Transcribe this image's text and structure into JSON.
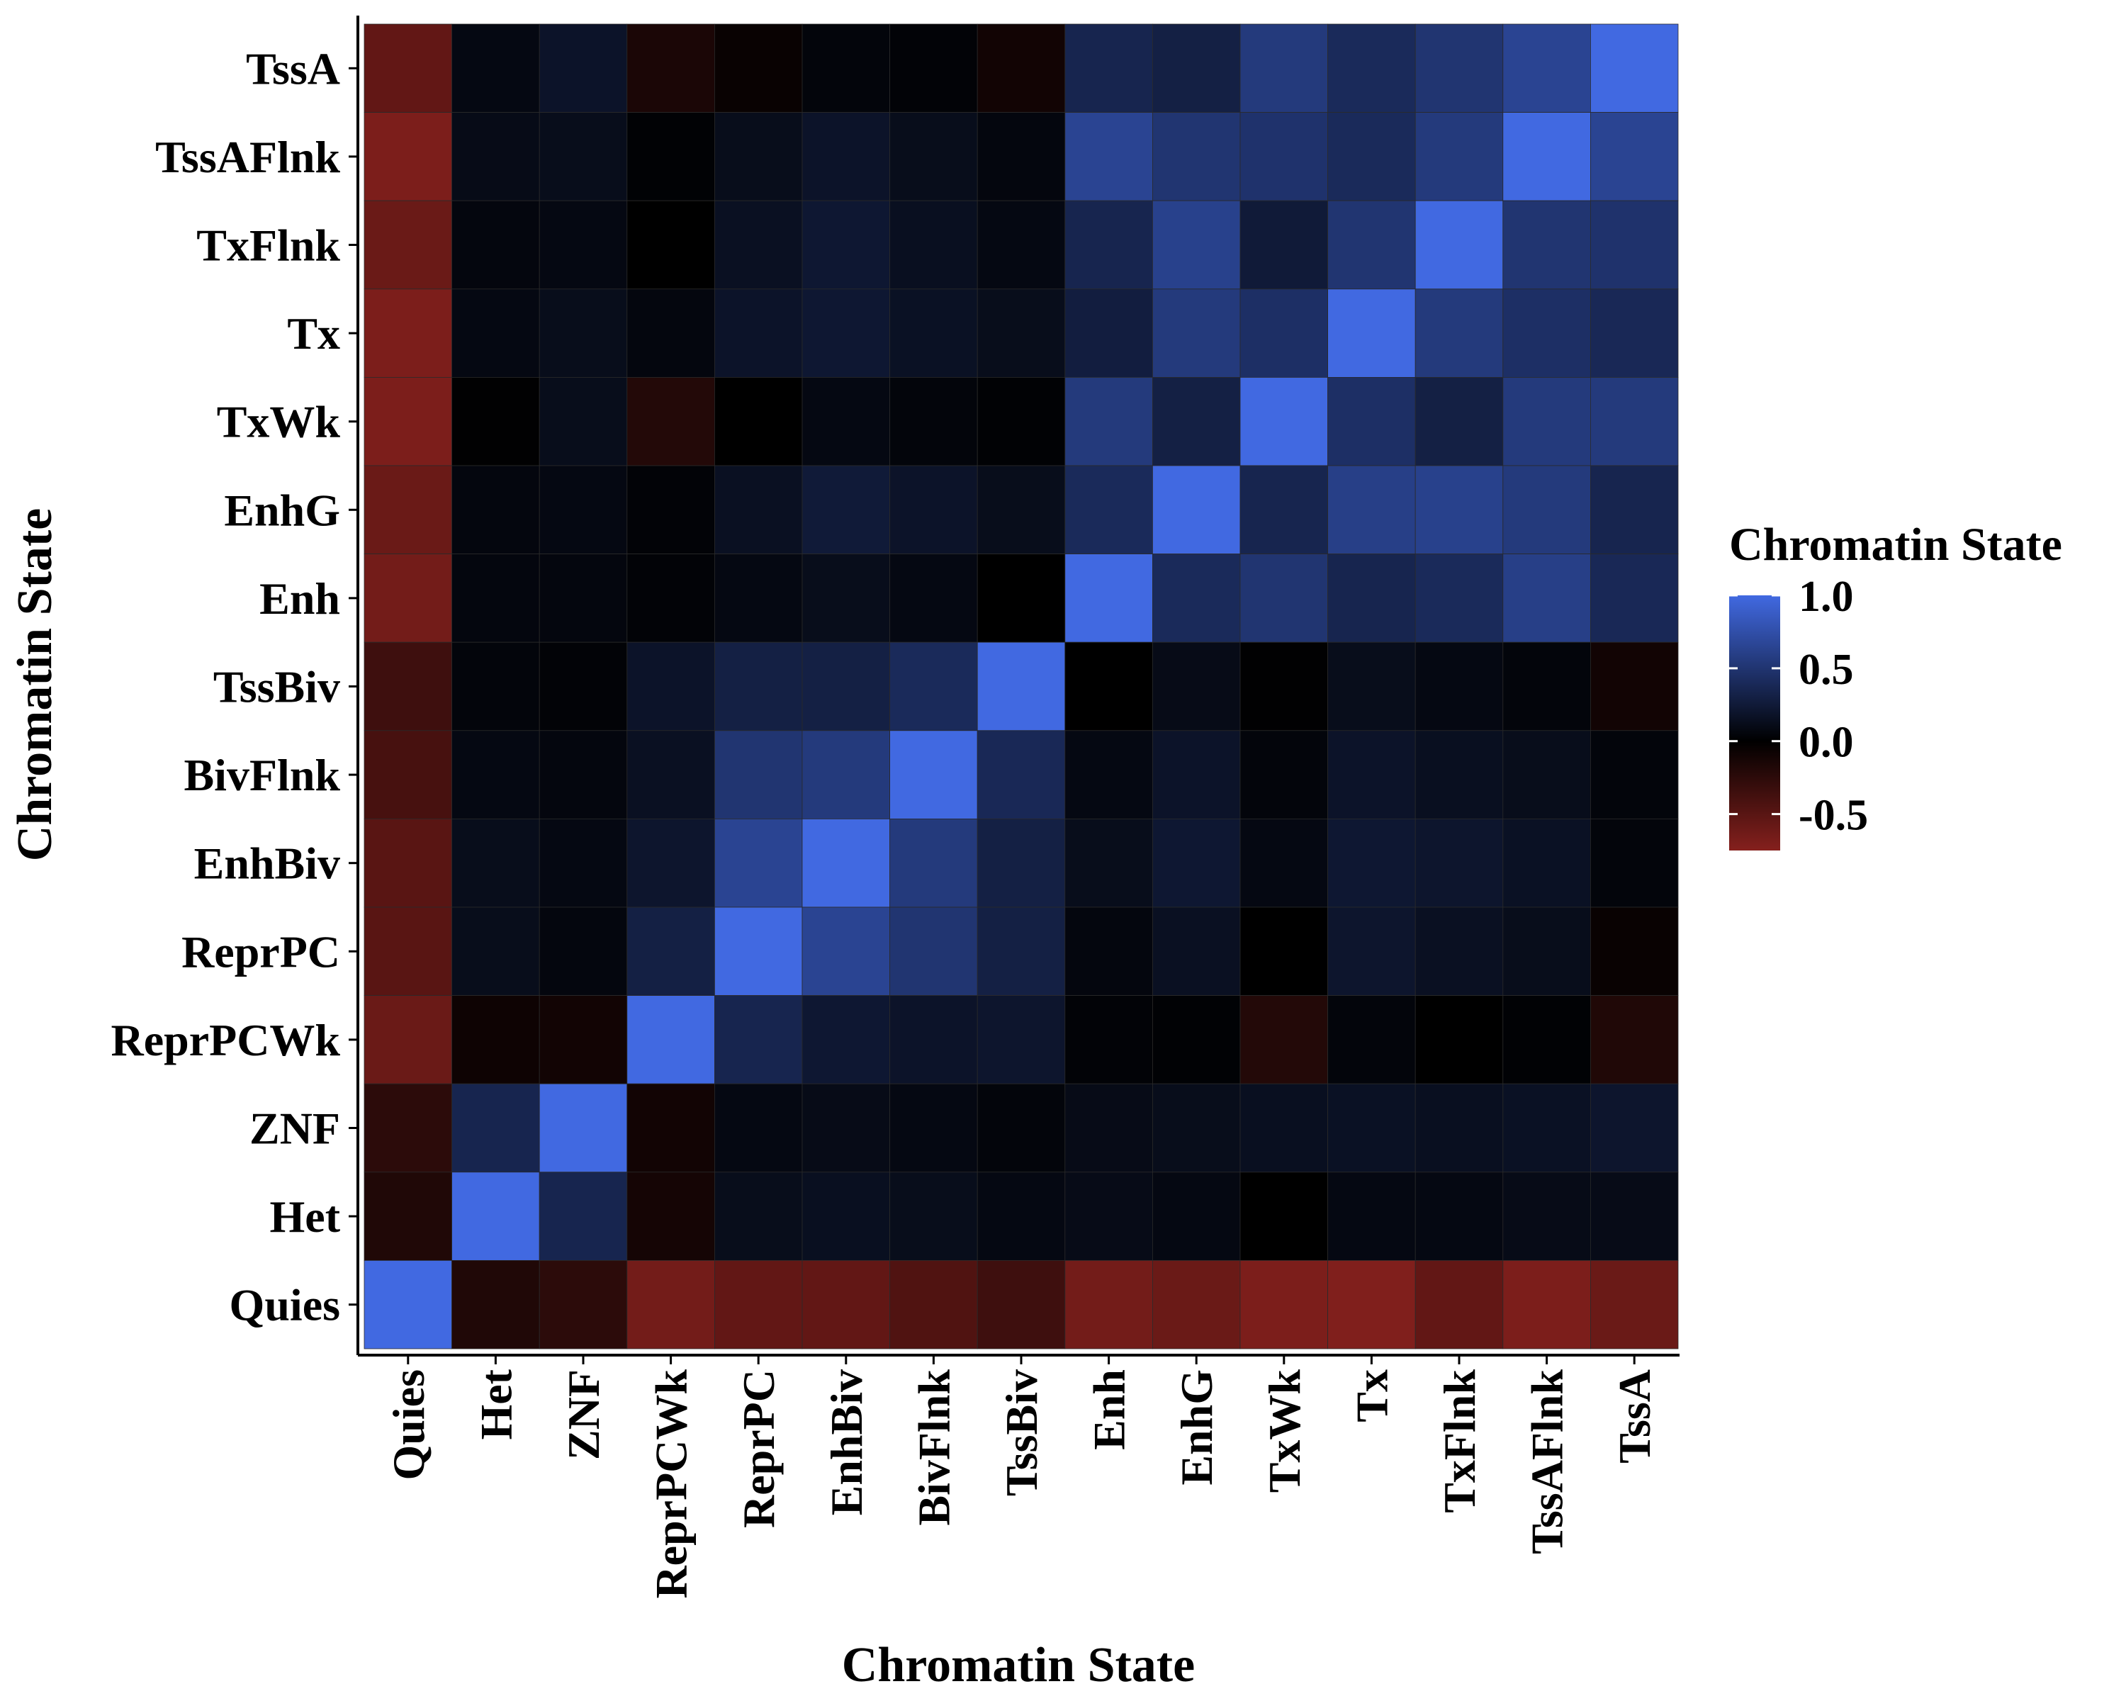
{
  "chart_data": {
    "type": "heatmap",
    "xlabel": "Chromatin State",
    "ylabel": "Chromatin State",
    "x_categories": [
      "Quies",
      "Het",
      "ZNF",
      "ReprPCWk",
      "ReprPC",
      "EnhBiv",
      "BivFlnk",
      "TssBiv",
      "Enh",
      "EnhG",
      "TxWk",
      "Tx",
      "TxFlnk",
      "TssAFlnk",
      "TssA"
    ],
    "y_categories_top_to_bottom": [
      "TssA",
      "TssAFlnk",
      "TxFlnk",
      "Tx",
      "TxWk",
      "EnhG",
      "Enh",
      "TssBiv",
      "BivFlnk",
      "EnhBiv",
      "ReprPC",
      "ReprPCWk",
      "ZNF",
      "Het",
      "Quies"
    ],
    "values": [
      [
        -0.55,
        0.08,
        0.18,
        -0.15,
        -0.05,
        0.05,
        0.03,
        -0.1,
        0.35,
        0.3,
        0.55,
        0.4,
        0.5,
        0.65,
        1.0
      ],
      [
        -0.7,
        0.1,
        0.12,
        0.02,
        0.12,
        0.18,
        0.12,
        0.06,
        0.65,
        0.5,
        0.48,
        0.4,
        0.55,
        1.0,
        0.65
      ],
      [
        -0.6,
        0.06,
        0.08,
        0.0,
        0.15,
        0.22,
        0.14,
        0.08,
        0.35,
        0.62,
        0.25,
        0.5,
        1.0,
        0.5,
        0.48
      ],
      [
        -0.7,
        0.08,
        0.12,
        0.06,
        0.18,
        0.22,
        0.16,
        0.12,
        0.28,
        0.55,
        0.45,
        1.0,
        0.55,
        0.45,
        0.38
      ],
      [
        -0.7,
        0.01,
        0.12,
        -0.2,
        0.0,
        0.08,
        0.05,
        0.02,
        0.55,
        0.3,
        1.0,
        0.45,
        0.3,
        0.55,
        0.55
      ],
      [
        -0.6,
        0.06,
        0.08,
        0.03,
        0.15,
        0.25,
        0.18,
        0.12,
        0.4,
        1.0,
        0.35,
        0.6,
        0.62,
        0.55,
        0.35
      ],
      [
        -0.65,
        0.06,
        0.06,
        0.03,
        0.08,
        0.12,
        0.08,
        0.0,
        1.0,
        0.4,
        0.5,
        0.35,
        0.4,
        0.6,
        0.38
      ],
      [
        -0.35,
        0.05,
        0.03,
        0.18,
        0.3,
        0.3,
        0.4,
        1.0,
        0.0,
        0.1,
        0.01,
        0.12,
        0.08,
        0.05,
        -0.1
      ],
      [
        -0.4,
        0.08,
        0.06,
        0.15,
        0.5,
        0.55,
        1.0,
        0.38,
        0.08,
        0.18,
        0.05,
        0.18,
        0.14,
        0.12,
        0.05
      ],
      [
        -0.5,
        0.12,
        0.08,
        0.2,
        0.65,
        1.0,
        0.55,
        0.3,
        0.12,
        0.22,
        0.08,
        0.22,
        0.2,
        0.16,
        0.05
      ],
      [
        -0.5,
        0.12,
        0.06,
        0.3,
        1.0,
        0.65,
        0.5,
        0.3,
        0.06,
        0.15,
        0.0,
        0.2,
        0.15,
        0.12,
        -0.05
      ],
      [
        -0.6,
        -0.08,
        -0.1,
        1.0,
        0.35,
        0.22,
        0.18,
        0.2,
        0.03,
        0.02,
        -0.2,
        0.05,
        0.0,
        0.02,
        -0.18
      ],
      [
        -0.25,
        0.35,
        1.0,
        -0.1,
        0.08,
        0.1,
        0.08,
        0.05,
        0.1,
        0.12,
        0.14,
        0.16,
        0.14,
        0.16,
        0.2
      ],
      [
        -0.18,
        1.0,
        0.35,
        -0.12,
        0.12,
        0.14,
        0.12,
        0.08,
        0.1,
        0.08,
        0.0,
        0.08,
        0.08,
        0.1,
        0.1
      ],
      [
        1.0,
        -0.18,
        -0.25,
        -0.65,
        -0.55,
        -0.55,
        -0.45,
        -0.35,
        -0.65,
        -0.6,
        -0.7,
        -0.72,
        -0.55,
        -0.7,
        -0.6
      ]
    ],
    "color_scale": {
      "min": -0.75,
      "mid": 0.0,
      "max": 1.0,
      "low": "#85201D",
      "midColor": "#000000",
      "high": "#4169E1"
    },
    "legend": {
      "title": "Chromatin State",
      "position": "right",
      "tick_values": [
        1.0,
        0.5,
        0.0,
        -0.5
      ],
      "tick_labels": [
        "1.0",
        "0.5",
        "0.0",
        "-0.5"
      ]
    },
    "grid": false
  }
}
